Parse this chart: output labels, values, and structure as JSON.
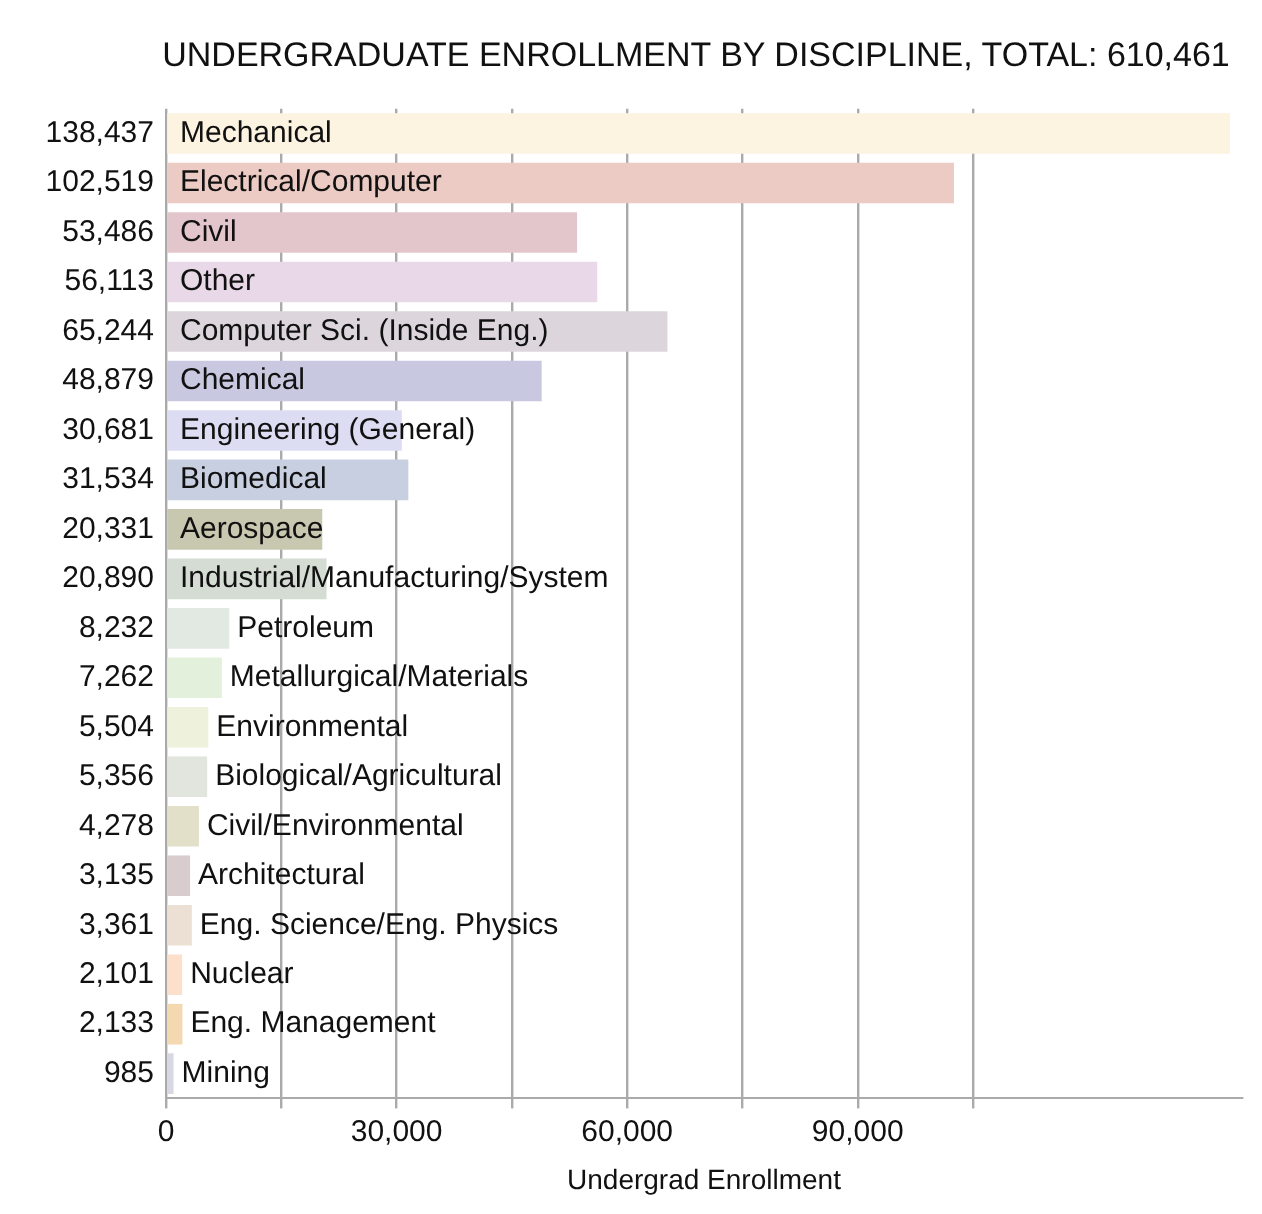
{
  "chart_data": {
    "type": "bar",
    "orientation": "horizontal",
    "title": "UNDERGRADUATE ENROLLMENT BY DISCIPLINE, TOTAL: 610,461",
    "xlabel": "Undergrad Enrollment",
    "categories": [
      "Mechanical",
      "Electrical/Computer",
      "Civil",
      "Other",
      "Computer Sci. (Inside Eng.)",
      "Chemical",
      "Engineering (General)",
      "Biomedical",
      "Aerospace",
      "Industrial/Manufacturing/System",
      "Petroleum",
      "Metallurgical/Materials",
      "Environmental",
      "Biological/Agricultural",
      "Civil/Environmental",
      "Architectural",
      "Eng. Science/Eng. Physics",
      "Nuclear",
      "Eng. Management",
      "Mining"
    ],
    "values": [
      138437,
      102519,
      53486,
      56113,
      65244,
      48879,
      30681,
      31534,
      20331,
      20890,
      8232,
      7262,
      5504,
      5356,
      4278,
      3135,
      3361,
      2101,
      2133,
      985
    ],
    "colors": [
      "#fdf3e1",
      "#ebcbc4",
      "#e2c6cc",
      "#e8d8e8",
      "#dcd6dc",
      "#c8c8e0",
      "#dcdcf2",
      "#c8cfe0",
      "#c8c8b0",
      "#d4dcd4",
      "#e2e8e2",
      "#e2f0dc",
      "#eef2dc",
      "#e2e4de",
      "#e2e0c8",
      "#d8ccce",
      "#ece0d4",
      "#fde0cc",
      "#f4d8b0",
      "#d8d8e2"
    ],
    "value_labels": [
      "138,437",
      "102,519",
      "53,486",
      "56,113",
      "65,244",
      "48,879",
      "30,681",
      "31,534",
      "20,331",
      "20,890",
      "8,232",
      "7,262",
      "5,504",
      "5,356",
      "4,278",
      "3,135",
      "3,361",
      "2,101",
      "2,133",
      "985"
    ],
    "xlim": [
      0,
      140000
    ],
    "xticks": [
      0,
      {
        "value": 15000,
        "label": null
      },
      {
        "value": 30000,
        "label": "30,000"
      },
      {
        "value": 45000,
        "label": null
      },
      {
        "value": 60000,
        "label": "60,000"
      },
      {
        "value": 75000,
        "label": null
      },
      {
        "value": 90000,
        "label": "90,000"
      },
      {
        "value": 105000,
        "label": null
      }
    ],
    "grid": "x",
    "legend": false
  }
}
